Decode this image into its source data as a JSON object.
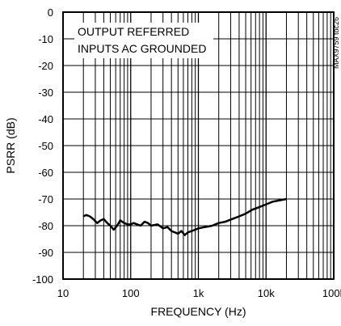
{
  "chart_data": {
    "type": "line",
    "title": "",
    "xlabel": "FREQUENCY (Hz)",
    "ylabel": "PSRR (dB)",
    "xscale": "log",
    "xlim": [
      20,
      100000
    ],
    "ylim": [
      -100,
      0
    ],
    "x_tick_labels": [
      "10",
      "100",
      "1k",
      "10k",
      "100k"
    ],
    "x_tick_values": [
      10,
      100,
      1000,
      10000,
      100000
    ],
    "y_tick_labels": [
      "0",
      "-10",
      "-20",
      "-30",
      "-40",
      "-50",
      "-60",
      "-70",
      "-80",
      "-90",
      "-100"
    ],
    "y_tick_values": [
      0,
      -10,
      -20,
      -30,
      -40,
      -50,
      -60,
      -70,
      -80,
      -90,
      -100
    ],
    "grid": true,
    "annotations": [
      "OUTPUT REFERRED",
      "INPUTS AC GROUNDED"
    ],
    "figure_id": "MAX9759 toc26",
    "series": [
      {
        "x": [
          20,
          22,
          25,
          28,
          32,
          36,
          40,
          45,
          50,
          56,
          63,
          70,
          80,
          90,
          100,
          110,
          125,
          140,
          160,
          180,
          200,
          250,
          300,
          350,
          400,
          450,
          500,
          560,
          630,
          700,
          800,
          900,
          1000,
          1250,
          1600,
          2000,
          2500,
          3150,
          4000,
          5000,
          6300,
          8000,
          10000,
          12500,
          16000,
          20000
        ],
        "y": [
          -76.5,
          -76,
          -76.5,
          -77.5,
          -79,
          -78,
          -77.5,
          -79,
          -80,
          -81.5,
          -80,
          -78,
          -79,
          -79.5,
          -79.5,
          -79,
          -79.5,
          -80,
          -78.5,
          -79,
          -80,
          -79.5,
          -81,
          -80.5,
          -82,
          -82.5,
          -83,
          -82,
          -83.5,
          -82.5,
          -82,
          -81.5,
          -81,
          -80.5,
          -80,
          -79,
          -78.5,
          -77.5,
          -76.5,
          -75.5,
          -74,
          -73,
          -72,
          -71,
          -70.5,
          -70
        ]
      }
    ]
  }
}
